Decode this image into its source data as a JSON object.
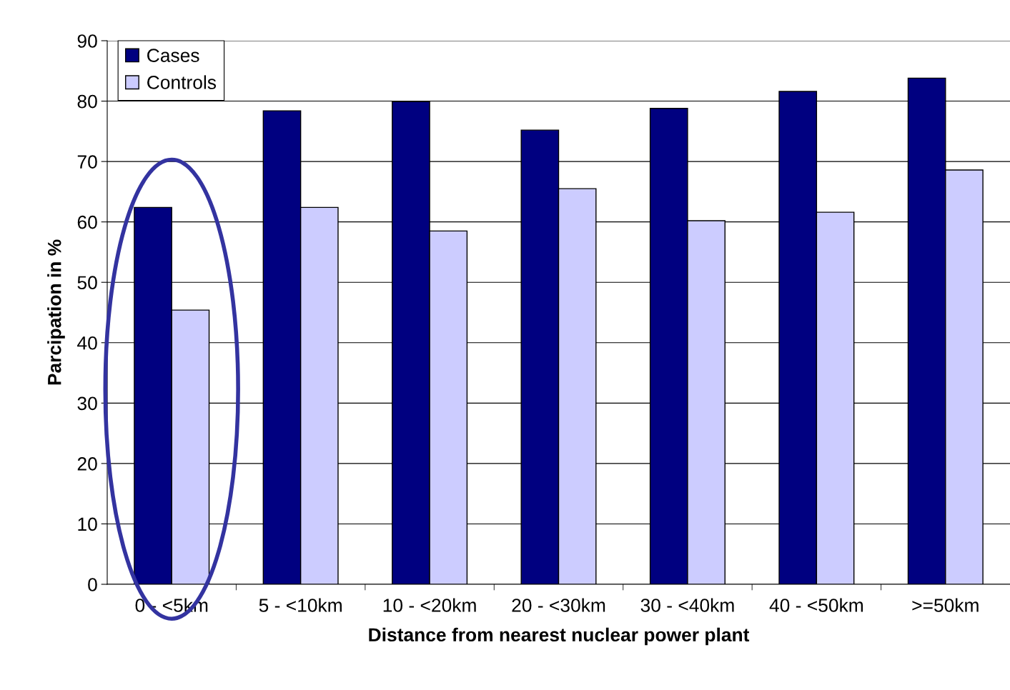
{
  "chart_data": {
    "type": "bar",
    "xlabel": "Distance from nearest nuclear power plant",
    "ylabel": "Parcipation in %",
    "categories": [
      "0 - <5km",
      "5 - <10km",
      "10 - <20km",
      "20 - <30km",
      "30 - <40km",
      "40 - <50km",
      ">=50km"
    ],
    "series": [
      {
        "name": "Cases",
        "color": "#000080",
        "values": [
          62.4,
          78.4,
          79.9,
          75.2,
          78.8,
          81.6,
          83.8
        ]
      },
      {
        "name": "Controls",
        "color": "#ccccff",
        "values": [
          45.4,
          62.4,
          58.5,
          65.5,
          60.2,
          61.6,
          68.6
        ]
      }
    ],
    "ylim": [
      0,
      90
    ],
    "yticks": [
      0,
      10,
      20,
      30,
      40,
      50,
      60,
      70,
      80,
      90
    ],
    "grid": "y",
    "legend": "top left"
  }
}
